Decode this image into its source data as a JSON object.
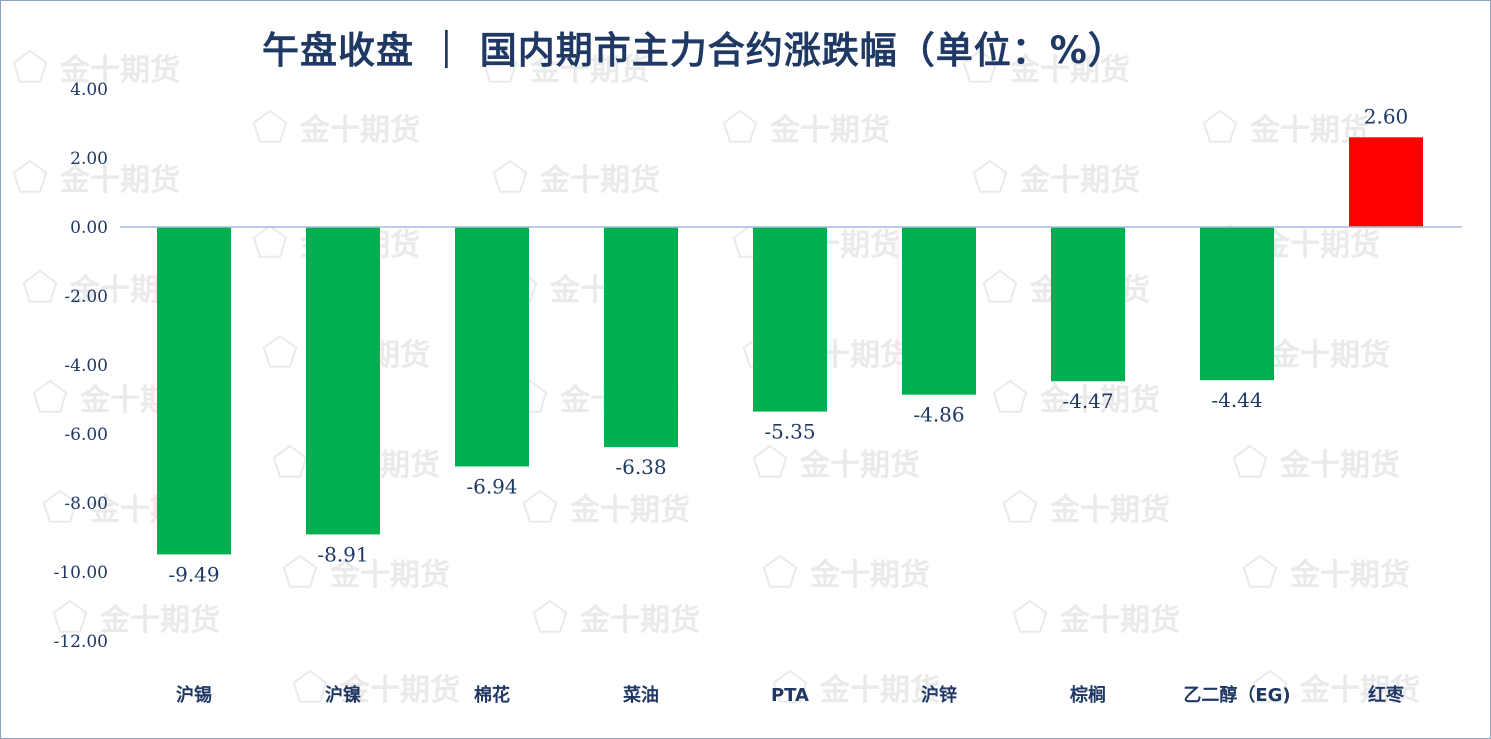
{
  "title": "午盘收盘 ｜ 国内期市主力合约涨跌幅（单位：%）",
  "watermark": "金十期货",
  "colors": {
    "negative": "#00b050",
    "positive": "#ff0000",
    "text": "#1f3864",
    "axis": "#a6bcd9"
  },
  "chart_data": {
    "type": "bar",
    "title": "午盘收盘 ｜ 国内期市主力合约涨跌幅（单位：%）",
    "categories": [
      "沪锡",
      "沪镍",
      "棉花",
      "菜油",
      "PTA",
      "沪锌",
      "棕榈",
      "乙二醇（EG)",
      "红枣"
    ],
    "values": [
      -9.49,
      -8.91,
      -6.94,
      -6.38,
      -5.35,
      -4.86,
      -4.47,
      -4.44,
      2.6
    ],
    "data_labels": [
      "-9.49",
      "-8.91",
      "-6.94",
      "-6.38",
      "-5.35",
      "-4.86",
      "-4.47",
      "-4.44",
      "2.60"
    ],
    "ylim": [
      -12,
      4
    ],
    "yticks": [
      4,
      2,
      0,
      -2,
      -4,
      -6,
      -8,
      -10,
      -12
    ],
    "ytick_labels": [
      "4.00",
      "2.00",
      "0.00",
      "-2.00",
      "-4.00",
      "-6.00",
      "-8.00",
      "-10.00",
      "-12.00"
    ],
    "grid": false,
    "legend": "none",
    "xlabel": "",
    "ylabel": ""
  }
}
